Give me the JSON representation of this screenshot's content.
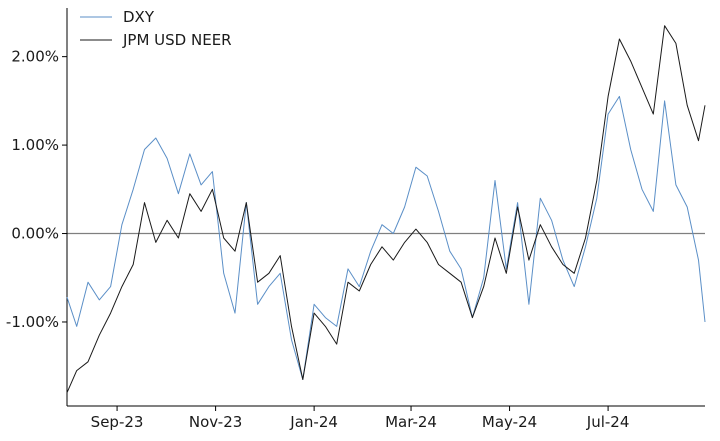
{
  "chart_data": {
    "type": "line",
    "title": "",
    "xlabel": "",
    "ylabel": "",
    "x_range": [
      "2023-08-01",
      "2024-08-30"
    ],
    "ylim": [
      -1.95,
      2.55
    ],
    "y_ticks": [
      -1.0,
      0.0,
      1.0,
      2.0
    ],
    "y_tick_labels": [
      "-1.00%",
      "0.00%",
      "1.00%",
      "2.00%"
    ],
    "x_ticks": [
      "2023-09-01",
      "2023-11-01",
      "2024-01-01",
      "2024-03-01",
      "2024-05-01",
      "2024-07-01"
    ],
    "x_tick_labels": [
      "Sep-23",
      "Nov-23",
      "Jan-24",
      "Mar-24",
      "May-24",
      "Jul-24"
    ],
    "reference_line_y": 0.0,
    "grid": false,
    "legend_position": "top-left",
    "colors": {
      "DXY": "#5b8fc7",
      "JPM USD NEER": "#1a1a1a",
      "zero_line": "#7f7f7f",
      "axis": "#000000"
    },
    "series": [
      {
        "name": "DXY",
        "points": [
          [
            "2023-08-01",
            -0.72
          ],
          [
            "2023-08-07",
            -1.05
          ],
          [
            "2023-08-14",
            -0.55
          ],
          [
            "2023-08-21",
            -0.75
          ],
          [
            "2023-08-28",
            -0.6
          ],
          [
            "2023-09-04",
            0.1
          ],
          [
            "2023-09-11",
            0.5
          ],
          [
            "2023-09-18",
            0.95
          ],
          [
            "2023-09-25",
            1.08
          ],
          [
            "2023-10-02",
            0.85
          ],
          [
            "2023-10-09",
            0.45
          ],
          [
            "2023-10-16",
            0.9
          ],
          [
            "2023-10-23",
            0.55
          ],
          [
            "2023-10-30",
            0.7
          ],
          [
            "2023-11-06",
            -0.45
          ],
          [
            "2023-11-13",
            -0.9
          ],
          [
            "2023-11-20",
            0.35
          ],
          [
            "2023-11-27",
            -0.8
          ],
          [
            "2023-12-04",
            -0.6
          ],
          [
            "2023-12-11",
            -0.45
          ],
          [
            "2023-12-18",
            -1.2
          ],
          [
            "2023-12-25",
            -1.65
          ],
          [
            "2024-01-01",
            -0.8
          ],
          [
            "2024-01-08",
            -0.95
          ],
          [
            "2024-01-15",
            -1.05
          ],
          [
            "2024-01-22",
            -0.4
          ],
          [
            "2024-01-29",
            -0.6
          ],
          [
            "2024-02-05",
            -0.2
          ],
          [
            "2024-02-12",
            0.1
          ],
          [
            "2024-02-19",
            0.0
          ],
          [
            "2024-02-26",
            0.3
          ],
          [
            "2024-03-04",
            0.75
          ],
          [
            "2024-03-11",
            0.65
          ],
          [
            "2024-03-18",
            0.25
          ],
          [
            "2024-03-25",
            -0.2
          ],
          [
            "2024-04-01",
            -0.4
          ],
          [
            "2024-04-08",
            -0.95
          ],
          [
            "2024-04-15",
            -0.5
          ],
          [
            "2024-04-22",
            0.6
          ],
          [
            "2024-04-29",
            -0.4
          ],
          [
            "2024-05-06",
            0.35
          ],
          [
            "2024-05-13",
            -0.8
          ],
          [
            "2024-05-20",
            0.4
          ],
          [
            "2024-05-27",
            0.15
          ],
          [
            "2024-06-03",
            -0.3
          ],
          [
            "2024-06-10",
            -0.6
          ],
          [
            "2024-06-17",
            -0.15
          ],
          [
            "2024-06-24",
            0.4
          ],
          [
            "2024-07-01",
            1.35
          ],
          [
            "2024-07-08",
            1.55
          ],
          [
            "2024-07-15",
            0.95
          ],
          [
            "2024-07-22",
            0.5
          ],
          [
            "2024-07-29",
            0.25
          ],
          [
            "2024-08-05",
            1.5
          ],
          [
            "2024-08-12",
            0.55
          ],
          [
            "2024-08-19",
            0.3
          ],
          [
            "2024-08-26",
            -0.3
          ],
          [
            "2024-08-30",
            -1.0
          ]
        ]
      },
      {
        "name": "JPM USD NEER",
        "points": [
          [
            "2023-08-01",
            -1.8
          ],
          [
            "2023-08-07",
            -1.55
          ],
          [
            "2023-08-14",
            -1.45
          ],
          [
            "2023-08-21",
            -1.15
          ],
          [
            "2023-08-28",
            -0.9
          ],
          [
            "2023-09-04",
            -0.6
          ],
          [
            "2023-09-11",
            -0.35
          ],
          [
            "2023-09-18",
            0.35
          ],
          [
            "2023-09-25",
            -0.1
          ],
          [
            "2023-10-02",
            0.15
          ],
          [
            "2023-10-09",
            -0.05
          ],
          [
            "2023-10-16",
            0.45
          ],
          [
            "2023-10-23",
            0.25
          ],
          [
            "2023-10-30",
            0.5
          ],
          [
            "2023-11-06",
            -0.05
          ],
          [
            "2023-11-13",
            -0.2
          ],
          [
            "2023-11-20",
            0.35
          ],
          [
            "2023-11-27",
            -0.55
          ],
          [
            "2023-12-04",
            -0.45
          ],
          [
            "2023-12-11",
            -0.25
          ],
          [
            "2023-12-18",
            -1.05
          ],
          [
            "2023-12-25",
            -1.65
          ],
          [
            "2024-01-01",
            -0.9
          ],
          [
            "2024-01-08",
            -1.05
          ],
          [
            "2024-01-15",
            -1.25
          ],
          [
            "2024-01-22",
            -0.55
          ],
          [
            "2024-01-29",
            -0.65
          ],
          [
            "2024-02-05",
            -0.35
          ],
          [
            "2024-02-12",
            -0.15
          ],
          [
            "2024-02-19",
            -0.3
          ],
          [
            "2024-02-26",
            -0.1
          ],
          [
            "2024-03-04",
            0.05
          ],
          [
            "2024-03-11",
            -0.1
          ],
          [
            "2024-03-18",
            -0.35
          ],
          [
            "2024-03-25",
            -0.45
          ],
          [
            "2024-04-01",
            -0.55
          ],
          [
            "2024-04-08",
            -0.95
          ],
          [
            "2024-04-15",
            -0.6
          ],
          [
            "2024-04-22",
            -0.05
          ],
          [
            "2024-04-29",
            -0.45
          ],
          [
            "2024-05-06",
            0.3
          ],
          [
            "2024-05-13",
            -0.3
          ],
          [
            "2024-05-20",
            0.1
          ],
          [
            "2024-05-27",
            -0.15
          ],
          [
            "2024-06-03",
            -0.35
          ],
          [
            "2024-06-10",
            -0.45
          ],
          [
            "2024-06-17",
            -0.05
          ],
          [
            "2024-06-24",
            0.6
          ],
          [
            "2024-07-01",
            1.55
          ],
          [
            "2024-07-08",
            2.2
          ],
          [
            "2024-07-15",
            1.95
          ],
          [
            "2024-07-22",
            1.65
          ],
          [
            "2024-07-29",
            1.35
          ],
          [
            "2024-08-05",
            2.35
          ],
          [
            "2024-08-12",
            2.15
          ],
          [
            "2024-08-19",
            1.45
          ],
          [
            "2024-08-26",
            1.05
          ],
          [
            "2024-08-30",
            1.45
          ]
        ]
      }
    ]
  }
}
